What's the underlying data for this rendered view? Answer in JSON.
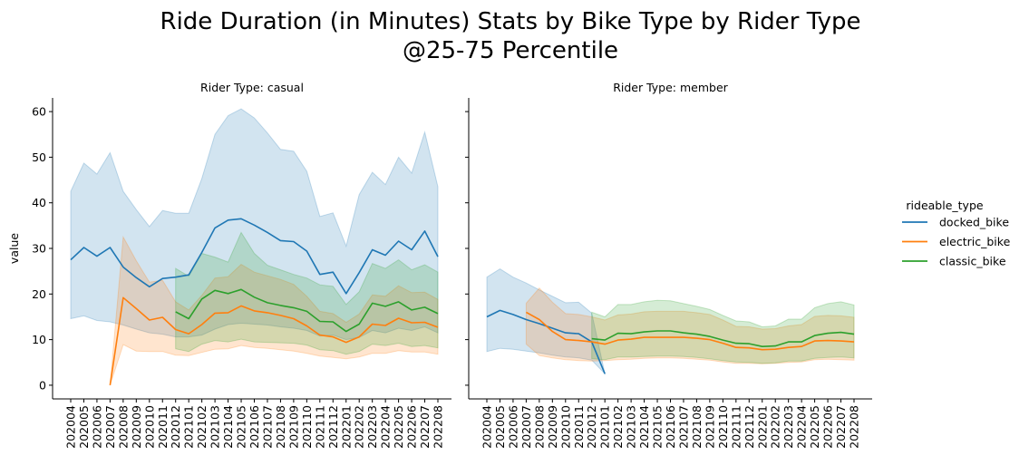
{
  "chart_data": {
    "type": "line",
    "title": "Ride Duration (in Minutes) Stats by Bike Type by Rider Type",
    "subtitle": "@25-75 Percentile",
    "xlabel": "",
    "ylabel": "value",
    "ylim": [
      -3,
      63
    ],
    "yticks": [
      0,
      10,
      20,
      30,
      40,
      50,
      60
    ],
    "grid": false,
    "legend": {
      "title": "rideable_type",
      "placement": "right"
    },
    "categories": [
      "202004",
      "202005",
      "202006",
      "202007",
      "202008",
      "202009",
      "202010",
      "202011",
      "202012",
      "202101",
      "202102",
      "202103",
      "202104",
      "202105",
      "202106",
      "202107",
      "202108",
      "202109",
      "202110",
      "202111",
      "202112",
      "202201",
      "202202",
      "202203",
      "202204",
      "202205",
      "202206",
      "202207",
      "202208"
    ],
    "colors": {
      "docked_bike": "#1f77b4",
      "electric_bike": "#ff7f0e",
      "classic_bike": "#2ca02c"
    },
    "series_names": [
      "docked_bike",
      "electric_bike",
      "classic_bike"
    ],
    "facets": [
      {
        "title": "Rider Type: casual",
        "series": [
          {
            "name": "docked_bike",
            "x_start": 0,
            "values": [
              27.5,
              30.2,
              28.3,
              30.2,
              25.9,
              23.6,
              21.6,
              23.4,
              23.7,
              24.2,
              29.1,
              34.5,
              36.2,
              36.5,
              35.1,
              33.5,
              31.7,
              31.5,
              29.4,
              24.3,
              24.8,
              20.1,
              24.7,
              29.7,
              28.5,
              31.6,
              29.7,
              33.8,
              28.2
            ],
            "lower": [
              14.6,
              15.2,
              14.2,
              13.9,
              13.2,
              12.3,
              11.5,
              11.2,
              10.6,
              10.6,
              11.0,
              12.3,
              13.3,
              13.6,
              13.4,
              13.2,
              12.8,
              12.5,
              12.0,
              10.8,
              11.0,
              10.0,
              10.5,
              12.0,
              11.5,
              12.5,
              12.0,
              12.8,
              11.5
            ],
            "upper": [
              42.5,
              48.7,
              46.3,
              51.0,
              42.5,
              38.5,
              34.8,
              38.3,
              37.7,
              37.7,
              45.3,
              55.0,
              59.1,
              60.6,
              58.6,
              55.3,
              51.7,
              51.3,
              46.9,
              37.0,
              37.8,
              30.5,
              41.8,
              46.7,
              44.0,
              50.0,
              46.5,
              55.5,
              43.5
            ]
          },
          {
            "name": "electric_bike",
            "x_start": 3,
            "values": [
              0.0,
              19.2,
              16.8,
              14.3,
              14.9,
              12.2,
              11.3,
              13.3,
              15.8,
              15.9,
              17.4,
              16.3,
              15.9,
              15.3,
              14.6,
              13.0,
              11.0,
              10.6,
              9.4,
              10.6,
              13.4,
              13.1,
              14.7,
              13.7,
              13.8,
              12.7
            ],
            "lower": [
              0.0,
              8.9,
              7.5,
              7.4,
              7.4,
              6.6,
              6.5,
              7.2,
              7.9,
              8.0,
              8.7,
              8.3,
              8.1,
              7.8,
              7.5,
              7.0,
              6.4,
              6.1,
              5.8,
              6.2,
              7.0,
              7.0,
              7.6,
              7.3,
              7.3,
              6.8
            ],
            "upper": [
              0.0,
              32.5,
              27.3,
              22.6,
              23.0,
              18.3,
              16.5,
              19.7,
              23.5,
              23.8,
              26.5,
              24.8,
              24.0,
              23.2,
              22.1,
              19.5,
              16.2,
              15.7,
              13.8,
              15.6,
              19.8,
              19.5,
              21.8,
              20.3,
              20.4,
              18.8
            ]
          },
          {
            "name": "classic_bike",
            "x_start": 8,
            "values": [
              16.1,
              14.6,
              18.9,
              20.8,
              20.1,
              21.0,
              19.3,
              18.1,
              17.5,
              17.0,
              16.2,
              14.0,
              13.9,
              11.8,
              13.4,
              18.0,
              17.3,
              18.3,
              16.5,
              17.1,
              15.7
            ],
            "lower": [
              8.0,
              7.4,
              9.0,
              9.8,
              9.5,
              10.1,
              9.5,
              9.4,
              9.3,
              9.2,
              8.8,
              7.8,
              7.6,
              6.8,
              7.4,
              9.0,
              8.7,
              9.2,
              8.5,
              8.7,
              8.2
            ],
            "upper": [
              25.6,
              23.9,
              28.9,
              28.1,
              27.0,
              33.5,
              28.9,
              26.3,
              25.3,
              24.3,
              23.5,
              22.0,
              21.7,
              17.7,
              20.5,
              26.7,
              25.6,
              27.5,
              25.3,
              26.4,
              24.8
            ]
          }
        ]
      },
      {
        "title": "Rider Type: member",
        "series": [
          {
            "name": "docked_bike",
            "x_start": 0,
            "values": [
              15.0,
              16.4,
              15.5,
              14.4,
              13.5,
              12.5,
              11.5,
              11.3,
              9.5,
              2.5
            ],
            "lower": [
              7.4,
              8.1,
              7.9,
              7.5,
              7.1,
              6.6,
              6.2,
              6.0,
              5.5,
              2.5
            ],
            "upper": [
              23.7,
              25.5,
              23.7,
              22.4,
              20.9,
              19.5,
              18.1,
              18.2,
              15.8,
              2.5
            ]
          },
          {
            "name": "electric_bike",
            "x_start": 3,
            "values": [
              16.0,
              14.4,
              11.8,
              10.0,
              9.8,
              9.5,
              9.0,
              9.9,
              10.1,
              10.5,
              10.5,
              10.5,
              10.5,
              10.3,
              10.0,
              9.2,
              8.3,
              8.2,
              7.8,
              7.9,
              8.3,
              8.5,
              9.7,
              9.8,
              9.7,
              9.5
            ],
            "lower": [
              9.0,
              6.5,
              6.0,
              5.6,
              5.4,
              5.3,
              5.4,
              5.6,
              5.7,
              5.9,
              6.0,
              6.0,
              5.9,
              5.7,
              5.5,
              5.1,
              4.8,
              4.8,
              4.7,
              4.8,
              5.0,
              5.1,
              5.6,
              5.7,
              5.6,
              5.5
            ],
            "upper": [
              18.0,
              21.3,
              18.2,
              15.7,
              15.5,
              15.0,
              14.3,
              15.4,
              15.6,
              16.1,
              16.2,
              16.2,
              16.2,
              15.9,
              15.5,
              14.3,
              12.9,
              12.8,
              12.3,
              12.4,
              13.0,
              13.3,
              15.1,
              15.3,
              15.2,
              14.9
            ]
          },
          {
            "name": "classic_bike",
            "x_start": 8,
            "values": [
              10.2,
              9.9,
              11.4,
              11.3,
              11.7,
              11.9,
              11.9,
              11.5,
              11.2,
              10.7,
              9.9,
              9.2,
              9.1,
              8.5,
              8.6,
              9.5,
              9.5,
              10.9,
              11.4,
              11.6,
              11.2
            ],
            "lower": [
              5.8,
              5.6,
              6.2,
              6.2,
              6.3,
              6.4,
              6.4,
              6.3,
              6.1,
              5.8,
              5.4,
              5.1,
              5.0,
              4.8,
              4.9,
              5.3,
              5.3,
              5.9,
              6.1,
              6.2,
              6.0
            ],
            "upper": [
              16.0,
              15.0,
              17.7,
              17.7,
              18.3,
              18.6,
              18.5,
              17.9,
              17.3,
              16.6,
              15.3,
              14.1,
              13.9,
              12.8,
              13.0,
              14.5,
              14.5,
              17.0,
              17.9,
              18.3,
              17.6
            ]
          }
        ]
      }
    ]
  }
}
